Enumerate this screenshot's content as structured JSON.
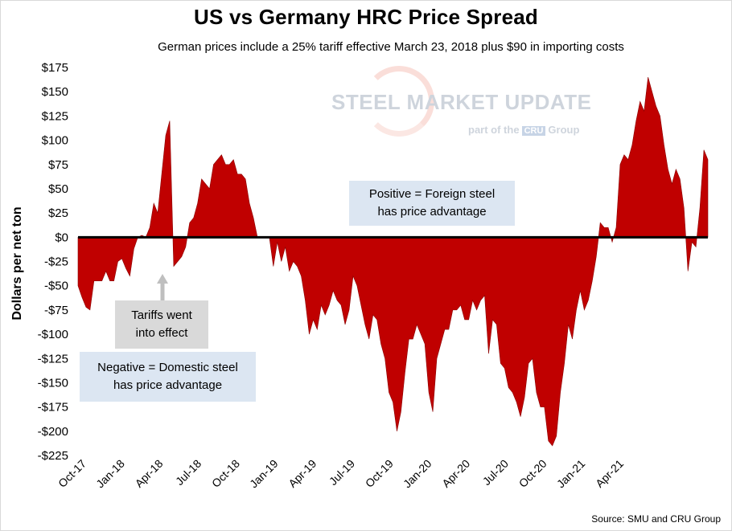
{
  "title": "US vs Germany HRC Price Spread",
  "subtitle": "German prices include a 25% tariff effective March 23, 2018 plus $90 in importing costs",
  "source": "Source: SMU and CRU Group",
  "annotations": {
    "positive": [
      "Positive = Foreign steel",
      "has price advantage"
    ],
    "negative": [
      "Negative = Domestic steel",
      "has price advantage"
    ],
    "tariff": [
      "Tariffs went",
      "into effect"
    ]
  },
  "watermark": {
    "brand": "STEEL MARKET UPDATE",
    "part_of": "part of the",
    "cru": "CRU",
    "group": "Group"
  },
  "colors": {
    "fill": "#c00000",
    "axis": "#000000",
    "annotation_box": "#dce6f2",
    "tariff_box": "#d9d9d9"
  },
  "chart_data": {
    "type": "area",
    "title": "US vs Germany HRC Price Spread",
    "subtitle": "German prices include a 25% tariff effective March 23, 2018 plus $90 in importing costs",
    "ylabel": "Dollars per net ton",
    "xlabel": "",
    "ylim": [
      -225,
      175
    ],
    "y_ticks": [
      175,
      150,
      125,
      100,
      75,
      50,
      25,
      0,
      -25,
      -50,
      -75,
      -100,
      -125,
      -150,
      -175,
      -200,
      -225
    ],
    "y_tick_labels": [
      "$175",
      "$150",
      "$125",
      "$100",
      "$75",
      "$50",
      "$25",
      "$0",
      "-$25",
      "-$50",
      "-$75",
      "-$100",
      "-$125",
      "-$150",
      "-$175",
      "-$200",
      "-$225"
    ],
    "x_tick_labels": [
      "Oct-17",
      "Jan-18",
      "Apr-18",
      "Jul-18",
      "Oct-18",
      "Jan-19",
      "Apr-19",
      "Jul-19",
      "Oct-19",
      "Jan-20",
      "Apr-20",
      "Jul-20",
      "Oct-20",
      "Jan-21",
      "Apr-21"
    ],
    "grid": false,
    "legend": "none",
    "series": [
      {
        "values": [
          -50,
          -62,
          -72,
          -75,
          -45,
          -45,
          -45,
          -35,
          -45,
          -45,
          -25,
          -22,
          -32,
          -40,
          -12,
          0,
          2,
          0,
          10,
          35,
          25,
          65,
          105,
          120,
          -30,
          -25,
          -20,
          -10,
          15,
          20,
          35,
          60,
          55,
          50,
          75,
          80,
          85,
          75,
          75,
          80,
          65,
          65,
          60,
          35,
          20,
          0,
          0,
          0,
          0,
          -30,
          -5,
          -25,
          -10,
          -35,
          -25,
          -30,
          -40,
          -65,
          -100,
          -85,
          -95,
          -70,
          -80,
          -70,
          -55,
          -65,
          -70,
          -90,
          -75,
          -40,
          -50,
          -70,
          -90,
          -105,
          -80,
          -85,
          -110,
          -125,
          -160,
          -170,
          -200,
          -180,
          -140,
          -105,
          -105,
          -90,
          -100,
          -110,
          -160,
          -180,
          -125,
          -110,
          -95,
          -95,
          -75,
          -75,
          -70,
          -85,
          -85,
          -65,
          -75,
          -65,
          -60,
          -120,
          -85,
          -90,
          -130,
          -135,
          -155,
          -160,
          -170,
          -185,
          -165,
          -130,
          -125,
          -160,
          -175,
          -175,
          -210,
          -215,
          -205,
          -160,
          -130,
          -90,
          -105,
          -75,
          -55,
          -75,
          -65,
          -45,
          -20,
          15,
          10,
          10,
          -5,
          10,
          75,
          85,
          80,
          95,
          120,
          140,
          130,
          165,
          150,
          135,
          125,
          95,
          70,
          55,
          70,
          60,
          30,
          -35,
          -5,
          -10,
          30,
          90,
          80
        ]
      }
    ]
  }
}
